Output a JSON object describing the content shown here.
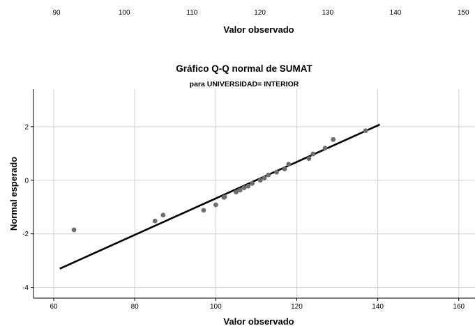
{
  "top_strip": {
    "ticks": [
      "90",
      "100",
      "110",
      "120",
      "130",
      "140",
      "150"
    ],
    "xlabel": "Valor observado"
  },
  "chart_data": {
    "type": "scatter",
    "title": "Gráfico Q-Q normal de SUMAT",
    "subtitle": "para UNIVERSIDAD= INTERIOR",
    "xlabel": "Valor observado",
    "ylabel": "Normal esperado",
    "xlim": [
      55,
      164
    ],
    "ylim": [
      -4.4,
      3.4
    ],
    "xticks": [
      60,
      80,
      100,
      120,
      140,
      160
    ],
    "yticks": [
      -4,
      -2,
      0,
      2
    ],
    "xtick_labels": [
      "60",
      "80",
      "100",
      "120",
      "140",
      "160"
    ],
    "ytick_labels": [
      "-4",
      "-2",
      "0",
      "2"
    ],
    "grid": true,
    "series": [
      {
        "points": [
          [
            65,
            -1.85
          ],
          [
            85,
            -1.52
          ],
          [
            87,
            -1.3
          ],
          [
            97,
            -1.12
          ],
          [
            100,
            -0.92
          ],
          [
            102,
            -0.64
          ],
          [
            102.2,
            -0.62
          ],
          [
            105,
            -0.44
          ],
          [
            106,
            -0.37
          ],
          [
            107,
            -0.28
          ],
          [
            108,
            -0.22
          ],
          [
            109,
            -0.12
          ],
          [
            111,
            0.0
          ],
          [
            112,
            0.08
          ],
          [
            113,
            0.2
          ],
          [
            115,
            0.3
          ],
          [
            117,
            0.42
          ],
          [
            118,
            0.6
          ],
          [
            123,
            0.81
          ],
          [
            124,
            0.98
          ],
          [
            127,
            1.2
          ],
          [
            129,
            1.52
          ],
          [
            137,
            1.85
          ]
        ],
        "color": "#6e6e6e"
      }
    ],
    "reference_line": {
      "x": [
        61.5,
        140.5
      ],
      "y": [
        -3.3,
        2.08
      ],
      "color": "#000000"
    }
  }
}
